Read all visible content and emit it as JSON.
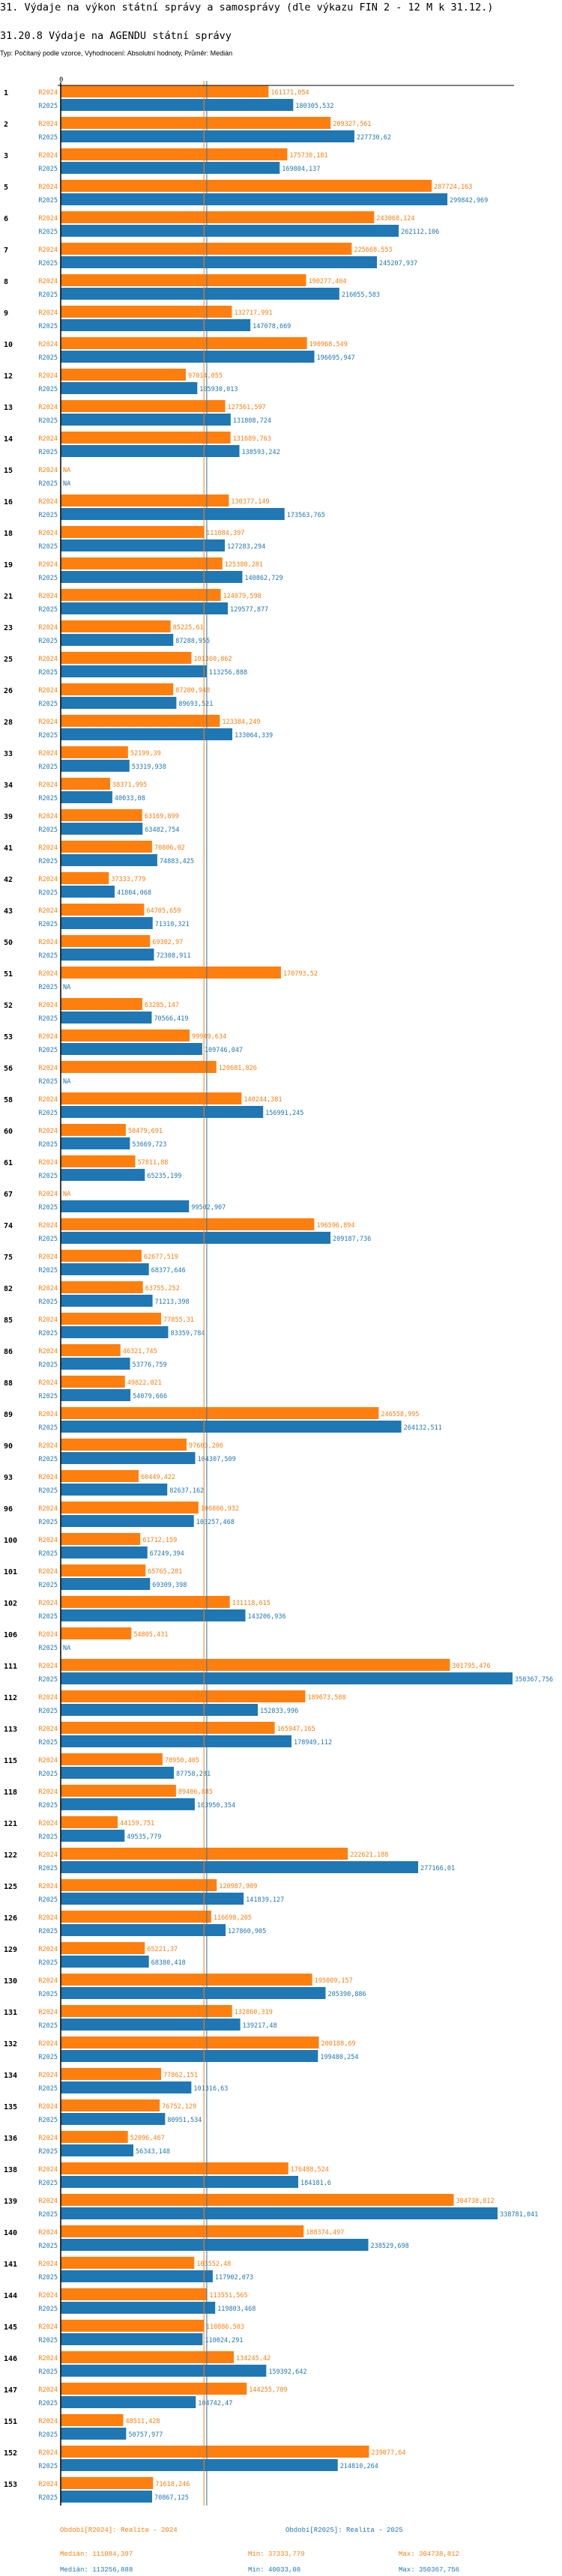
{
  "page": {
    "title": "31. Výdaje na výkon státní správy a samosprávy (dle výkazu FIN 2 - 12 M k 31.12.)",
    "subtitle": "31.20.8 Výdaje na AGENDU státní správy",
    "meta": "Typ: Počítaný podle vzorce, Vyhodnocení: Absolutní hodnoty, Průměr: Medián"
  },
  "chart_data": {
    "type": "bar",
    "orientation": "horizontal",
    "title": "31.20.8 Výdaje na AGENDU státní správy",
    "zero_label": "0",
    "colors": {
      "R2024": "#ff7f0e",
      "R2025": "#1f77b4"
    },
    "series_labels": [
      "R2024",
      "R2025"
    ],
    "categories": [
      "1",
      "2",
      "3",
      "5",
      "6",
      "7",
      "8",
      "9",
      "10",
      "12",
      "13",
      "14",
      "15",
      "16",
      "18",
      "19",
      "21",
      "23",
      "25",
      "26",
      "28",
      "33",
      "34",
      "39",
      "41",
      "42",
      "43",
      "50",
      "51",
      "52",
      "53",
      "56",
      "58",
      "60",
      "61",
      "67",
      "74",
      "75",
      "82",
      "85",
      "86",
      "88",
      "89",
      "90",
      "93",
      "96",
      "100",
      "101",
      "102",
      "106",
      "111",
      "112",
      "113",
      "115",
      "118",
      "121",
      "122",
      "125",
      "126",
      "129",
      "130",
      "131",
      "132",
      "134",
      "135",
      "136",
      "138",
      "139",
      "140",
      "141",
      "144",
      "145",
      "146",
      "147",
      "151",
      "152",
      "153"
    ],
    "series": [
      {
        "name": "R2024",
        "values": [
          "161171,054",
          "209327,561",
          "175730,181",
          "287724,163",
          "243068,124",
          "225668,553",
          "190277,404",
          "132717,991",
          "190968,549",
          "97014,055",
          "127561,597",
          "131689,763",
          "NA",
          "130377,149",
          "111084,397",
          "125380,281",
          "124079,598",
          "85225,61",
          "101360,862",
          "87280,948",
          "123384,249",
          "52199,39",
          "38371,995",
          "63169,899",
          "70806,02",
          "37333,779",
          "64705,659",
          "69302,97",
          "170793,52",
          "63285,147",
          "99949,634",
          "120681,826",
          "140244,381",
          "50479,691",
          "57811,88",
          "NA",
          "196596,894",
          "62677,519",
          "63755,252",
          "77855,31",
          "46321,745",
          "49822,021",
          "246558,995",
          "97603,206",
          "60449,422",
          "106806,932",
          "61712,159",
          "65765,281",
          "131118,615",
          "54805,431",
          "301795,476",
          "189673,588",
          "165947,165",
          "78950,405",
          "89406,885",
          "44159,751",
          "222621,188",
          "120987,909",
          "116698,205",
          "65221,37",
          "195009,157",
          "132860,319",
          "200188,69",
          "77862,151",
          "76752,129",
          "52096,467",
          "176488,524",
          "304738,812",
          "188374,497",
          "103552,48",
          "113551,565",
          "110886,503",
          "134245,42",
          "144255,709",
          "48511,428",
          "239077,64",
          "71618,246"
        ]
      },
      {
        "name": "R2025",
        "values": [
          "180305,532",
          "227730,62",
          "169804,137",
          "299842,969",
          "262112,106",
          "245207,937",
          "216055,583",
          "147078,669",
          "196695,947",
          "105930,013",
          "131808,724",
          "138593,242",
          "NA",
          "173563,765",
          "127283,294",
          "140862,729",
          "129577,877",
          "87288,955",
          "113256,888",
          "89693,521",
          "133064,339",
          "53319,938",
          "40033,08",
          "63482,754",
          "74883,425",
          "41804,068",
          "71310,321",
          "72308,911",
          "NA",
          "70566,419",
          "109746,047",
          "NA",
          "156991,245",
          "53669,723",
          "65235,199",
          "99502,907",
          "209187,736",
          "68377,646",
          "71213,398",
          "83359,784",
          "53776,759",
          "54079,666",
          "264132,511",
          "104307,509",
          "82637,162",
          "103257,468",
          "67249,394",
          "69309,398",
          "143206,936",
          "NA",
          "350367,756",
          "152833,996",
          "178949,112",
          "87758,281",
          "103950,354",
          "49535,779",
          "277166,01",
          "141839,127",
          "127860,905",
          "68380,418",
          "205390,886",
          "139217,48",
          "199480,254",
          "101316,63",
          "80951,534",
          "56343,148",
          "184181,6",
          "338781,041",
          "238529,698",
          "117902,073",
          "119803,468",
          "110024,291",
          "159392,642",
          "104742,47",
          "50757,977",
          "214810,264",
          "70867,125"
        ]
      }
    ],
    "medians": {
      "R2024": 111084.397,
      "R2025": 113256.888
    },
    "xlim": [
      0,
      350367.756
    ],
    "legend": {
      "R2024": "Období[R2024]: Realita - 2024",
      "R2025": "Období[R2025]: Realita - 2025"
    },
    "stats": {
      "R2024": {
        "median": "Medián: 111084,397",
        "min": "Min: 37333,779",
        "max": "Max: 304738,812"
      },
      "R2025": {
        "median": "Medián: 113256,888",
        "min": "Min: 40033,08",
        "max": "Max: 350367,756"
      }
    }
  }
}
